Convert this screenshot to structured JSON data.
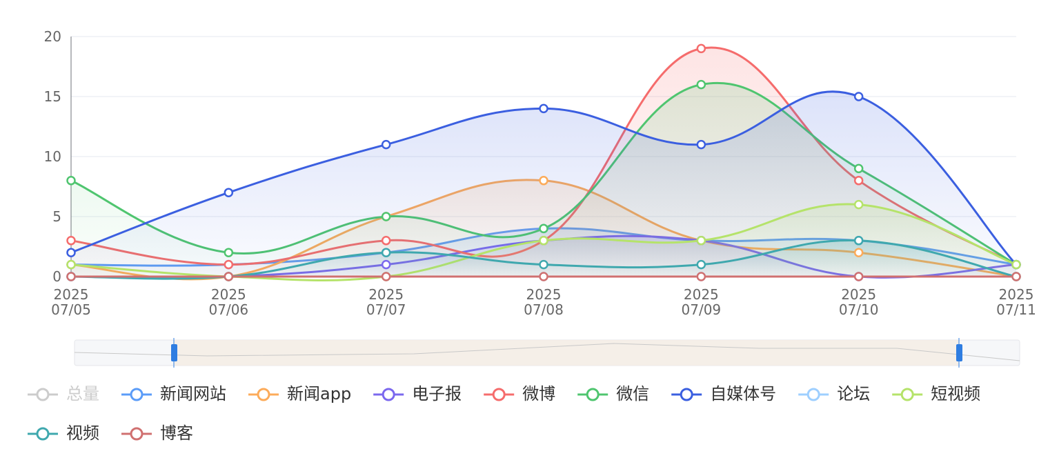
{
  "chart_data": {
    "type": "line",
    "categories": [
      "2025\n07/05",
      "2025\n07/06",
      "2025\n07/07",
      "2025\n07/08",
      "2025\n07/09",
      "2025\n07/10",
      "2025\n07/11"
    ],
    "ylim": [
      0,
      20
    ],
    "yticks": [
      0,
      5,
      10,
      15,
      20
    ],
    "grid": true,
    "smooth": true,
    "area": true,
    "legend_hidden": [
      {
        "name": "总量",
        "color": "#cccccc"
      }
    ],
    "series": [
      {
        "name": "新闻网站",
        "color": "#5b9cf8",
        "values": [
          1,
          1,
          2,
          4,
          3,
          3,
          1
        ]
      },
      {
        "name": "新闻app",
        "color": "#fcab5a",
        "values": [
          1,
          0,
          5,
          8,
          3,
          2,
          0
        ]
      },
      {
        "name": "电子报",
        "color": "#7b68ee",
        "values": [
          0,
          0,
          1,
          3,
          3,
          0,
          1
        ]
      },
      {
        "name": "微博",
        "color": "#f56c6c",
        "values": [
          3,
          1,
          3,
          3,
          19,
          8,
          1
        ]
      },
      {
        "name": "微信",
        "color": "#4fc56f",
        "values": [
          8,
          2,
          5,
          4,
          16,
          9,
          1
        ]
      },
      {
        "name": "自媒体号",
        "color": "#3b5fe0",
        "values": [
          2,
          7,
          11,
          14,
          11,
          15,
          1
        ]
      },
      {
        "name": "论坛",
        "color": "#9ecfff",
        "values": [
          0,
          0,
          0,
          0,
          0,
          0,
          0
        ]
      },
      {
        "name": "短视频",
        "color": "#b5e36a",
        "values": [
          1,
          0,
          0,
          3,
          3,
          6,
          1
        ]
      },
      {
        "name": "视频",
        "color": "#3fa8ae",
        "values": [
          0,
          0,
          2,
          1,
          1,
          3,
          0
        ]
      },
      {
        "name": "博客",
        "color": "#d07070",
        "values": [
          0,
          0,
          0,
          0,
          0,
          0,
          0
        ]
      }
    ]
  }
}
